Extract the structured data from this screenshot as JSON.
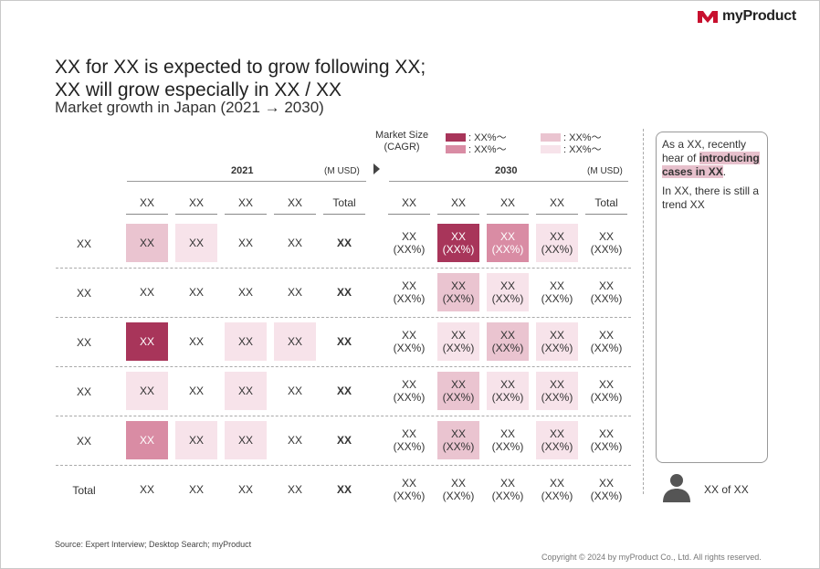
{
  "brand": {
    "name": "myProduct",
    "color": "#c8102e"
  },
  "title_line1": "XX for XX is expected to grow following XX;",
  "title_line2": "XX will grow especially in XX / XX",
  "subtitle": "Market growth in Japan (2021 → 2030)",
  "legend": {
    "label_line1": "Market Size",
    "label_line2": "(CAGR)",
    "items": [
      {
        "text": ": XX%～",
        "color": "#a8355a"
      },
      {
        "text": ": XX%～",
        "color": "#d98ca4"
      },
      {
        "text": ": XX%～",
        "color": "#eac4d0"
      },
      {
        "text": ": XX%～",
        "color": "#f7e3ea"
      }
    ]
  },
  "left": {
    "year": "2021",
    "unit": "(M USD)",
    "headers": [
      "XX",
      "XX",
      "XX",
      "XX",
      "Total"
    ]
  },
  "right": {
    "year": "2030",
    "unit": "(M USD)",
    "headers": [
      "XX",
      "XX",
      "XX",
      "XX",
      "Total"
    ]
  },
  "rows": [
    {
      "label": "XX",
      "left": [
        "XX",
        "XX",
        "XX",
        "XX",
        "XX"
      ],
      "right_top": [
        "XX",
        "XX",
        "XX",
        "XX",
        "XX"
      ],
      "right_bottom": [
        "(XX%)",
        "(XX%)",
        "(XX%)",
        "(XX%)",
        "(XX%)"
      ]
    },
    {
      "label": "XX",
      "left": [
        "XX",
        "XX",
        "XX",
        "XX",
        "XX"
      ],
      "right_top": [
        "XX",
        "XX",
        "XX",
        "XX",
        "XX"
      ],
      "right_bottom": [
        "(XX%)",
        "(XX%)",
        "(XX%)",
        "(XX%)",
        "(XX%)"
      ]
    },
    {
      "label": "XX",
      "left": [
        "XX",
        "XX",
        "XX",
        "XX",
        "XX"
      ],
      "right_top": [
        "XX",
        "XX",
        "XX",
        "XX",
        "XX"
      ],
      "right_bottom": [
        "(XX%)",
        "(XX%)",
        "(XX%)",
        "(XX%)",
        "(XX%)"
      ]
    },
    {
      "label": "XX",
      "left": [
        "XX",
        "XX",
        "XX",
        "XX",
        "XX"
      ],
      "right_top": [
        "XX",
        "XX",
        "XX",
        "XX",
        "XX"
      ],
      "right_bottom": [
        "(XX%)",
        "(XX%)",
        "(XX%)",
        "(XX%)",
        "(XX%)"
      ]
    },
    {
      "label": "XX",
      "left": [
        "XX",
        "XX",
        "XX",
        "XX",
        "XX"
      ],
      "right_top": [
        "XX",
        "XX",
        "XX",
        "XX",
        "XX"
      ],
      "right_bottom": [
        "(XX%)",
        "(XX%)",
        "(XX%)",
        "(XX%)",
        "(XX%)"
      ]
    },
    {
      "label": "Total",
      "left": [
        "XX",
        "XX",
        "XX",
        "XX",
        "XX"
      ],
      "right_top": [
        "XX",
        "XX",
        "XX",
        "XX",
        "XX"
      ],
      "right_bottom": [
        "(XX%)",
        "(XX%)",
        "(XX%)",
        "(XX%)",
        "(XX%)"
      ]
    }
  ],
  "callout": {
    "p1_pre": "As a XX, recently hear of ",
    "p1_highlight": "introducing cases in XX",
    "p1_post": ".",
    "p2": "In XX, there is still a trend XX"
  },
  "person_label": "XX of XX",
  "source": "Source: Expert Interview; Desktop Search; myProduct",
  "copyright": "Copyright © 2024 by myProduct Co., Ltd.  All rights reserved."
}
